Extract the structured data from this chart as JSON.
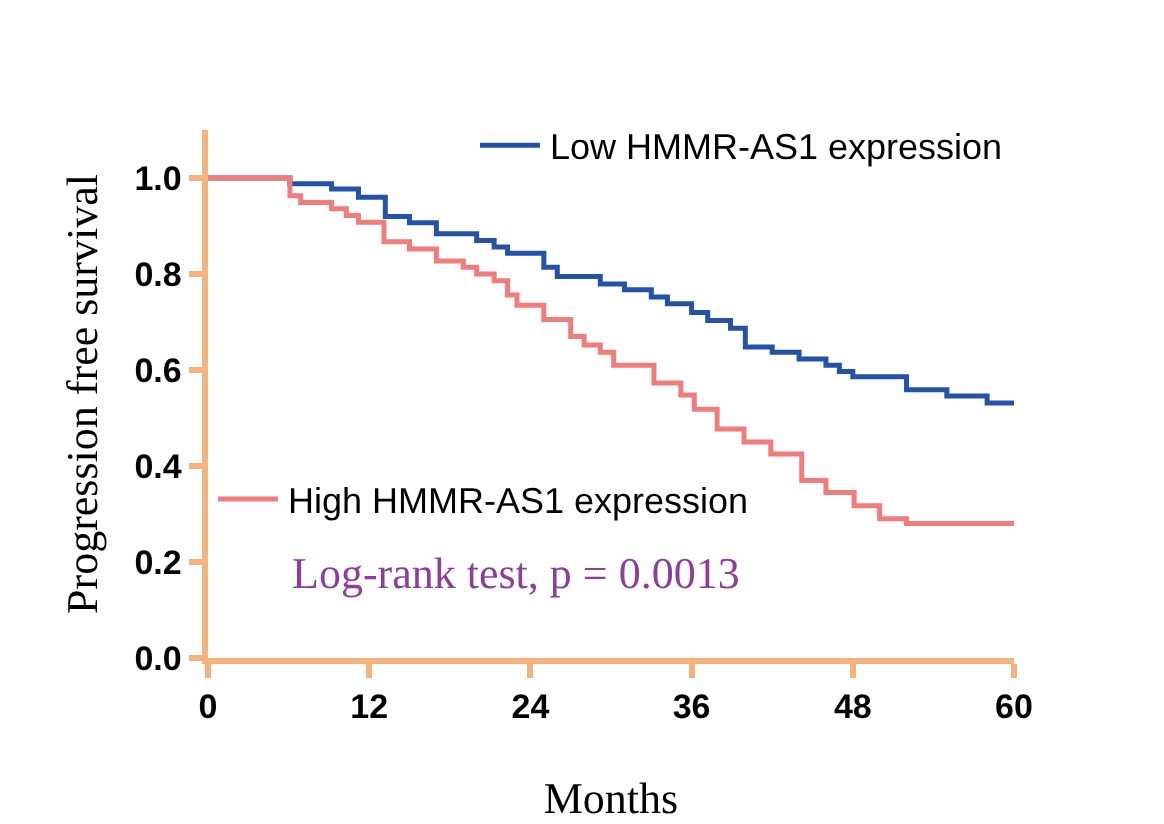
{
  "chart_data": {
    "type": "step",
    "xlabel": "Months",
    "ylabel": "Progression free survival",
    "xlim": [
      0,
      60
    ],
    "xticks": [
      0,
      12,
      24,
      36,
      48,
      60
    ],
    "ylim": [
      0,
      1.1
    ],
    "yticks": [
      {
        "value": 0,
        "label": "0.0"
      },
      {
        "value": 0.2,
        "label": "0.2"
      },
      {
        "value": 0.4,
        "label": "0.4"
      },
      {
        "value": 0.6,
        "label": "0.6"
      },
      {
        "value": 0.8,
        "label": "0.8"
      },
      {
        "value": 1,
        "label": "1.0"
      }
    ],
    "legend": "top right",
    "marker": "none",
    "grid": false,
    "series": [
      {
        "name": "Low HMMR-AS1 expression",
        "color": "#2452a4",
        "x": [
          0,
          6.1,
          9.2,
          11.2,
          13.2,
          15,
          17,
          20,
          21.3,
          22.3,
          25,
          26,
          29.2,
          31,
          33,
          34.2,
          36,
          37.2,
          38.9,
          40,
          42,
          44,
          46,
          47,
          48,
          52,
          55,
          58,
          60
        ],
        "values": [
          1.0,
          0.988,
          0.977,
          0.96,
          0.92,
          0.907,
          0.884,
          0.87,
          0.856,
          0.843,
          0.814,
          0.795,
          0.779,
          0.767,
          0.752,
          0.738,
          0.72,
          0.703,
          0.687,
          0.648,
          0.637,
          0.623,
          0.61,
          0.597,
          0.586,
          0.559,
          0.546,
          0.531,
          0.531
        ]
      },
      {
        "name": "High HMMR-AS1 expression",
        "color": "#f07c7c",
        "x": [
          0,
          6.1,
          6.9,
          9.2,
          10.3,
          11.2,
          13.1,
          15,
          17,
          19,
          20,
          21.3,
          22.3,
          23,
          25,
          27,
          28,
          29.2,
          30.2,
          33.2,
          35.2,
          36.2,
          37.9,
          39.9,
          41.9,
          44.2,
          46,
          48.1,
          50,
          52,
          60
        ],
        "values": [
          1.0,
          0.963,
          0.949,
          0.936,
          0.922,
          0.908,
          0.867,
          0.852,
          0.827,
          0.814,
          0.8,
          0.786,
          0.756,
          0.735,
          0.705,
          0.67,
          0.652,
          0.637,
          0.61,
          0.573,
          0.548,
          0.518,
          0.477,
          0.45,
          0.425,
          0.37,
          0.345,
          0.317,
          0.29,
          0.28,
          0.28
        ]
      }
    ],
    "annotations": [
      "Log-rank test, p = 0.0013"
    ]
  }
}
